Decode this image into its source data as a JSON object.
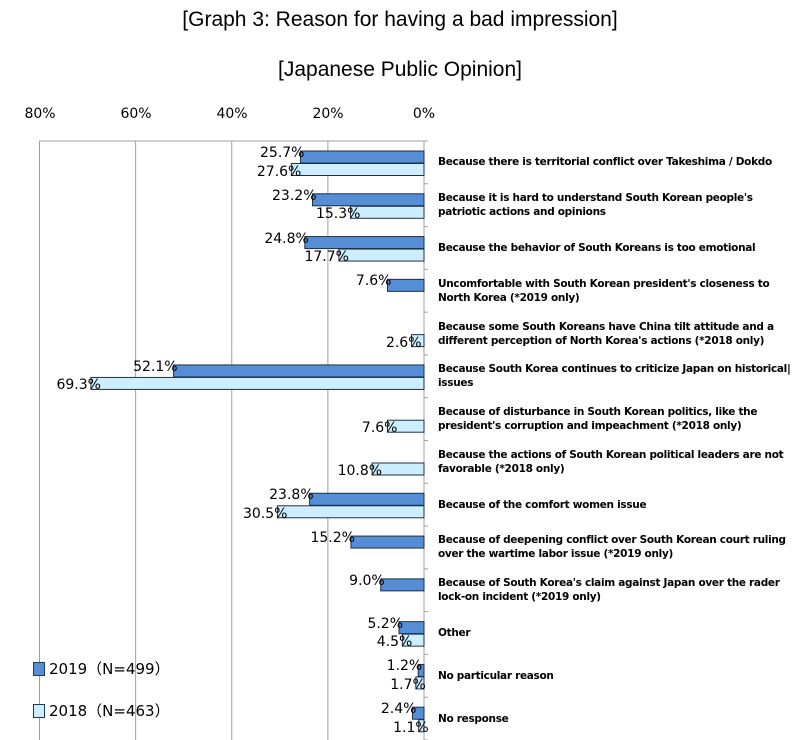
{
  "chart_data": {
    "type": "bar",
    "orientation": "horizontal-reversed",
    "title": "[Graph 3: Reason for having a bad impression]",
    "subtitle": "[Japanese Public Opinion]",
    "xlim": [
      80,
      0
    ],
    "x_ticks": [
      "80%",
      "60%",
      "40%",
      "20%",
      "0%"
    ],
    "grid": true,
    "legend_position": "bottom-left",
    "categories": [
      "Because there is territorial conflict over Takeshima / Dokdo",
      "Because it is hard to understand South Korean people's\npatriotic actions and opinions",
      "Because the behavior of South Koreans is too emotional",
      "Uncomfortable with South Korean president's closeness to\nNorth Korea (*2019 only)",
      "Because some South Koreans have China tilt attitude and a\ndifferent perception of North Korea's actions (*2018 only)",
      "Because South Korea continues to criticize Japan on historical|\nissues",
      "Because of disturbance in South Korean politics, like the\npresident's corruption and impeachment (*2018 only)",
      "Because the actions of South Korean political leaders are not\nfavorable (*2018 only)",
      "Because of the comfort women issue",
      "Because of deepening conflict over South Korean court ruling\nover the wartime labor issue (*2019 only)",
      "Because of South Korea's claim against Japan over the rader\nlock-on incident (*2019 only)",
      "Other",
      "No particular reason",
      "No response"
    ],
    "series": [
      {
        "name": "2019（N=499）",
        "color": "#558ED5",
        "values": [
          25.7,
          23.2,
          24.8,
          7.6,
          null,
          52.1,
          null,
          null,
          23.8,
          15.2,
          9.0,
          5.2,
          1.2,
          2.4
        ]
      },
      {
        "name": "2018（N=463）",
        "color": "#CCEEFF",
        "values": [
          27.6,
          15.3,
          17.7,
          null,
          2.6,
          69.3,
          7.6,
          10.8,
          30.5,
          null,
          null,
          4.5,
          1.7,
          1.1
        ]
      }
    ]
  }
}
